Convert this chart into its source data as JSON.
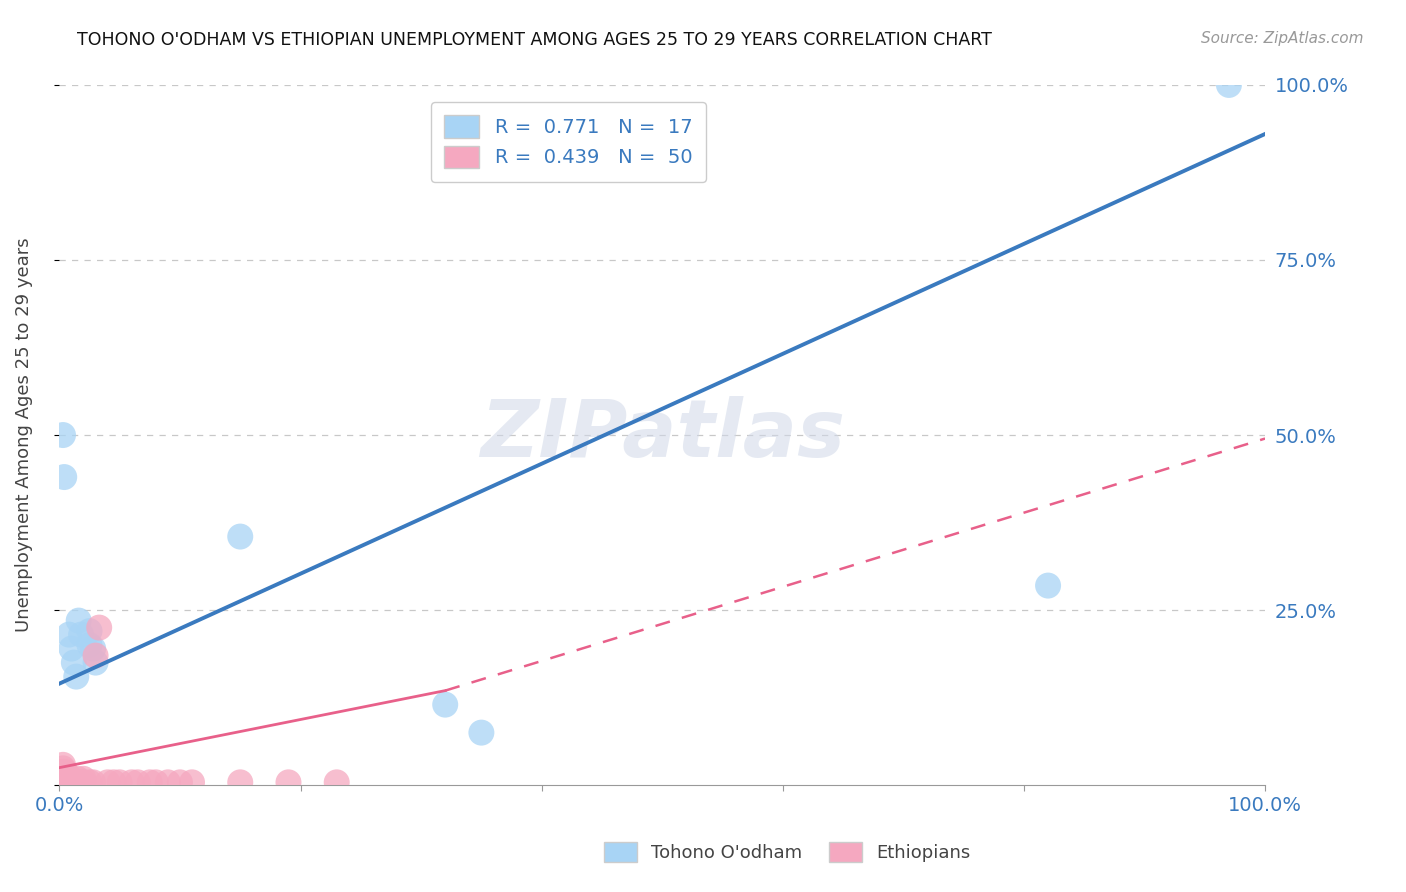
{
  "title": "TOHONO O'ODHAM VS ETHIOPIAN UNEMPLOYMENT AMONG AGES 25 TO 29 YEARS CORRELATION CHART",
  "source": "Source: ZipAtlas.com",
  "ylabel": "Unemployment Among Ages 25 to 29 years",
  "xlim": [
    0,
    1.0
  ],
  "ylim": [
    0,
    1.0
  ],
  "xticks": [
    0.0,
    0.2,
    0.4,
    0.6,
    0.8,
    1.0
  ],
  "yticks": [
    0.0,
    0.25,
    0.5,
    0.75,
    1.0
  ],
  "xticklabels": [
    "0.0%",
    "",
    "",
    "",
    "",
    "100.0%"
  ],
  "yticklabels_right": [
    "0.0%",
    "25.0%",
    "50.0%",
    "75.0%",
    "100.0%"
  ],
  "blue_R": "0.771",
  "blue_N": "17",
  "pink_R": "0.439",
  "pink_N": "50",
  "blue_color": "#a8d4f5",
  "pink_color": "#f5a8c0",
  "blue_line_color": "#3a7abf",
  "pink_line_color": "#e8608a",
  "watermark": "ZIPatlas",
  "background_color": "#ffffff",
  "grid_color": "#c8c8c8",
  "blue_dots": [
    [
      0.003,
      0.5
    ],
    [
      0.004,
      0.44
    ],
    [
      0.008,
      0.215
    ],
    [
      0.01,
      0.195
    ],
    [
      0.012,
      0.175
    ],
    [
      0.014,
      0.155
    ],
    [
      0.016,
      0.235
    ],
    [
      0.018,
      0.215
    ],
    [
      0.025,
      0.22
    ],
    [
      0.025,
      0.2
    ],
    [
      0.028,
      0.195
    ],
    [
      0.03,
      0.175
    ],
    [
      0.15,
      0.355
    ],
    [
      0.32,
      0.115
    ],
    [
      0.35,
      0.075
    ],
    [
      0.82,
      0.285
    ],
    [
      0.97,
      1.0
    ]
  ],
  "pink_dots": [
    [
      0.002,
      0.004
    ],
    [
      0.002,
      0.009
    ],
    [
      0.002,
      0.014
    ],
    [
      0.002,
      0.019
    ],
    [
      0.003,
      0.004
    ],
    [
      0.003,
      0.009
    ],
    [
      0.003,
      0.014
    ],
    [
      0.003,
      0.019
    ],
    [
      0.003,
      0.024
    ],
    [
      0.003,
      0.029
    ],
    [
      0.004,
      0.004
    ],
    [
      0.004,
      0.009
    ],
    [
      0.004,
      0.014
    ],
    [
      0.005,
      0.004
    ],
    [
      0.005,
      0.009
    ],
    [
      0.005,
      0.014
    ],
    [
      0.005,
      0.019
    ],
    [
      0.006,
      0.004
    ],
    [
      0.006,
      0.009
    ],
    [
      0.007,
      0.004
    ],
    [
      0.007,
      0.009
    ],
    [
      0.007,
      0.014
    ],
    [
      0.008,
      0.004
    ],
    [
      0.008,
      0.009
    ],
    [
      0.009,
      0.004
    ],
    [
      0.01,
      0.004
    ],
    [
      0.01,
      0.009
    ],
    [
      0.012,
      0.004
    ],
    [
      0.015,
      0.004
    ],
    [
      0.015,
      0.009
    ],
    [
      0.018,
      0.004
    ],
    [
      0.02,
      0.004
    ],
    [
      0.02,
      0.009
    ],
    [
      0.025,
      0.004
    ],
    [
      0.028,
      0.004
    ],
    [
      0.03,
      0.185
    ],
    [
      0.033,
      0.225
    ],
    [
      0.04,
      0.004
    ],
    [
      0.045,
      0.004
    ],
    [
      0.05,
      0.004
    ],
    [
      0.06,
      0.004
    ],
    [
      0.065,
      0.004
    ],
    [
      0.075,
      0.004
    ],
    [
      0.08,
      0.004
    ],
    [
      0.09,
      0.004
    ],
    [
      0.1,
      0.004
    ],
    [
      0.11,
      0.004
    ],
    [
      0.15,
      0.004
    ],
    [
      0.19,
      0.004
    ],
    [
      0.23,
      0.004
    ]
  ],
  "blue_line": {
    "x0": 0.0,
    "y0": 0.145,
    "x1": 1.0,
    "y1": 0.93
  },
  "pink_line_solid": {
    "x0": 0.0,
    "y0": 0.025,
    "x1": 0.32,
    "y1": 0.135
  },
  "pink_line_dashed": {
    "x0": 0.32,
    "y0": 0.135,
    "x1": 1.0,
    "y1": 0.495
  }
}
